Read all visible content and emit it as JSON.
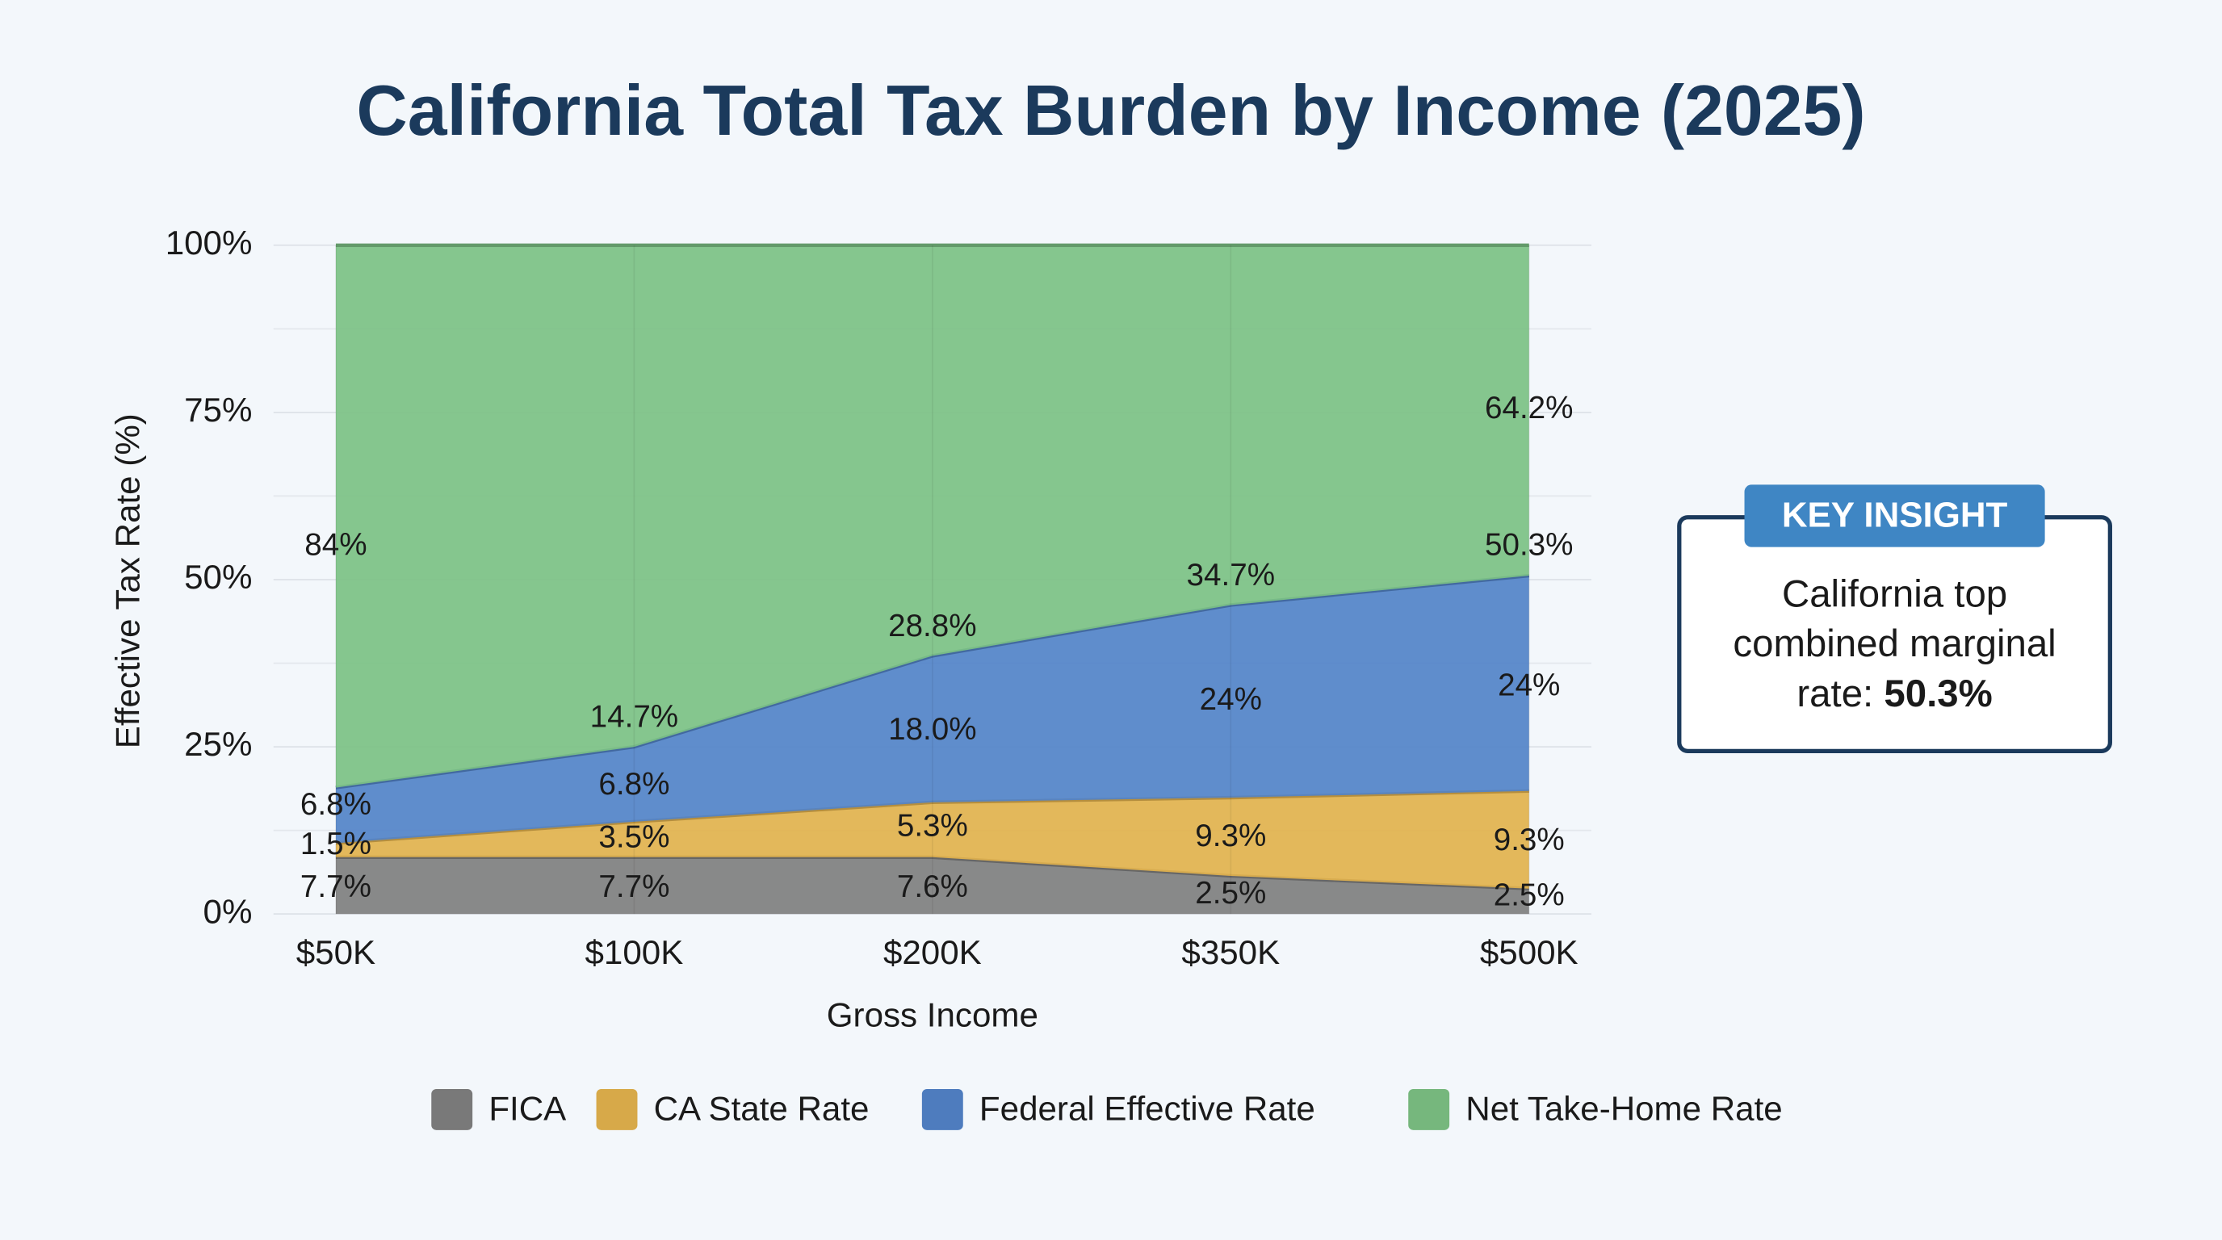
{
  "chart_data": {
    "type": "stacked_area",
    "title": "California Total Tax Burden by Income (2025)",
    "x_label": "Gross Income",
    "y_label": "Effective Tax Rate (%)",
    "categories": [
      "$50K",
      "$100K",
      "$200K",
      "$350K",
      "$500K"
    ],
    "series": [
      {
        "name": "FICA",
        "color": "#7f7f7f",
        "values": [
          8.5,
          8.5,
          8.5,
          5.7,
          3.8
        ]
      },
      {
        "name": "CA State Rate",
        "color": "#e2b24d",
        "values": [
          2.1,
          5.3,
          8.2,
          11.7,
          14.6
        ]
      },
      {
        "name": "Federal Effective Rate",
        "color": "#5283c8",
        "values": [
          8.3,
          11.2,
          21.9,
          28.8,
          32.2
        ]
      },
      {
        "name": "Net Take-Home Rate",
        "color": "#7cc184",
        "values": [
          81.1,
          75.0,
          61.4,
          53.8,
          49.4
        ]
      }
    ],
    "ylim": [
      0,
      100
    ],
    "yticks": [
      {
        "value": 0,
        "label": "0%"
      },
      {
        "value": 25,
        "label": "25%"
      },
      {
        "value": 50,
        "label": "50%"
      },
      {
        "value": 75,
        "label": "75%"
      },
      {
        "value": 100,
        "label": "100%"
      }
    ],
    "minor_yticks": [
      12.5,
      37.5,
      62.5,
      87.5
    ],
    "grid": true,
    "legend": "bottom",
    "annotations": [
      {
        "text": "84%",
        "x": "$50K",
        "y": 54.9
      },
      {
        "text": "6.8%",
        "x": "$50K",
        "y": 16.1
      },
      {
        "text": "1.5%",
        "x": "$50K",
        "y": 10.2
      },
      {
        "text": "7.7%",
        "x": "$50K",
        "y": 3.8
      },
      {
        "text": "14.7%",
        "x": "$100K",
        "y": 29.2
      },
      {
        "text": "6.8%",
        "x": "$100K",
        "y": 19.1
      },
      {
        "text": "3.5%",
        "x": "$100K",
        "y": 11.2
      },
      {
        "text": "7.7%",
        "x": "$100K",
        "y": 3.8
      },
      {
        "text": "28.8%",
        "x": "$200K",
        "y": 42.8
      },
      {
        "text": "18.0%",
        "x": "$200K",
        "y": 27.3
      },
      {
        "text": "5.3%",
        "x": "$200K",
        "y": 12.9
      },
      {
        "text": "7.6%",
        "x": "$200K",
        "y": 3.8
      },
      {
        "text": "34.7%",
        "x": "$350K",
        "y": 50.4
      },
      {
        "text": "24%",
        "x": "$350K",
        "y": 31.8
      },
      {
        "text": "9.3%",
        "x": "$350K",
        "y": 11.4
      },
      {
        "text": "2.5%",
        "x": "$350K",
        "y": 2.8
      },
      {
        "text": "64.2%",
        "x": "$500K",
        "y": 75.4
      },
      {
        "text": "50.3%",
        "x": "$500K",
        "y": 54.9
      },
      {
        "text": "24%",
        "x": "$500K",
        "y": 33.9
      },
      {
        "text": "9.3%",
        "x": "$500K",
        "y": 10.8
      },
      {
        "text": "2.5%",
        "x": "$500K",
        "y": 2.5
      }
    ]
  },
  "insight": {
    "kicker": "KEY INSIGHT",
    "body": [
      "California top",
      "combined marginal",
      "rate:"
    ],
    "highlight": "50.3%"
  }
}
